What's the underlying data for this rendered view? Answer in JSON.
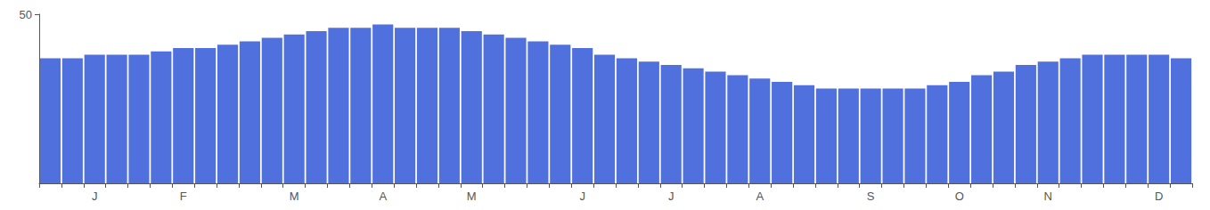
{
  "chart_data": {
    "type": "bar",
    "categories": [
      null,
      null,
      "J",
      null,
      null,
      null,
      "F",
      null,
      null,
      null,
      null,
      "M",
      null,
      null,
      null,
      "A",
      null,
      null,
      null,
      "M",
      null,
      null,
      null,
      null,
      "J",
      null,
      null,
      null,
      "J",
      null,
      null,
      null,
      "A",
      null,
      null,
      null,
      null,
      "S",
      null,
      null,
      null,
      "O",
      null,
      null,
      null,
      "N",
      null,
      null,
      null,
      null,
      "D",
      null
    ],
    "values": [
      37,
      37,
      38,
      38,
      38,
      39,
      40,
      40,
      41,
      42,
      43,
      44,
      45,
      46,
      46,
      47,
      46,
      46,
      46,
      45,
      44,
      43,
      42,
      41,
      40,
      38,
      37,
      36,
      35,
      34,
      33,
      32,
      31,
      30,
      29,
      28,
      28,
      28,
      28,
      28,
      29,
      30,
      32,
      33,
      35,
      36,
      37,
      38,
      38,
      38,
      38,
      37
    ],
    "ylim": [
      0,
      50
    ],
    "yticks": [
      50
    ],
    "grid": false
  }
}
